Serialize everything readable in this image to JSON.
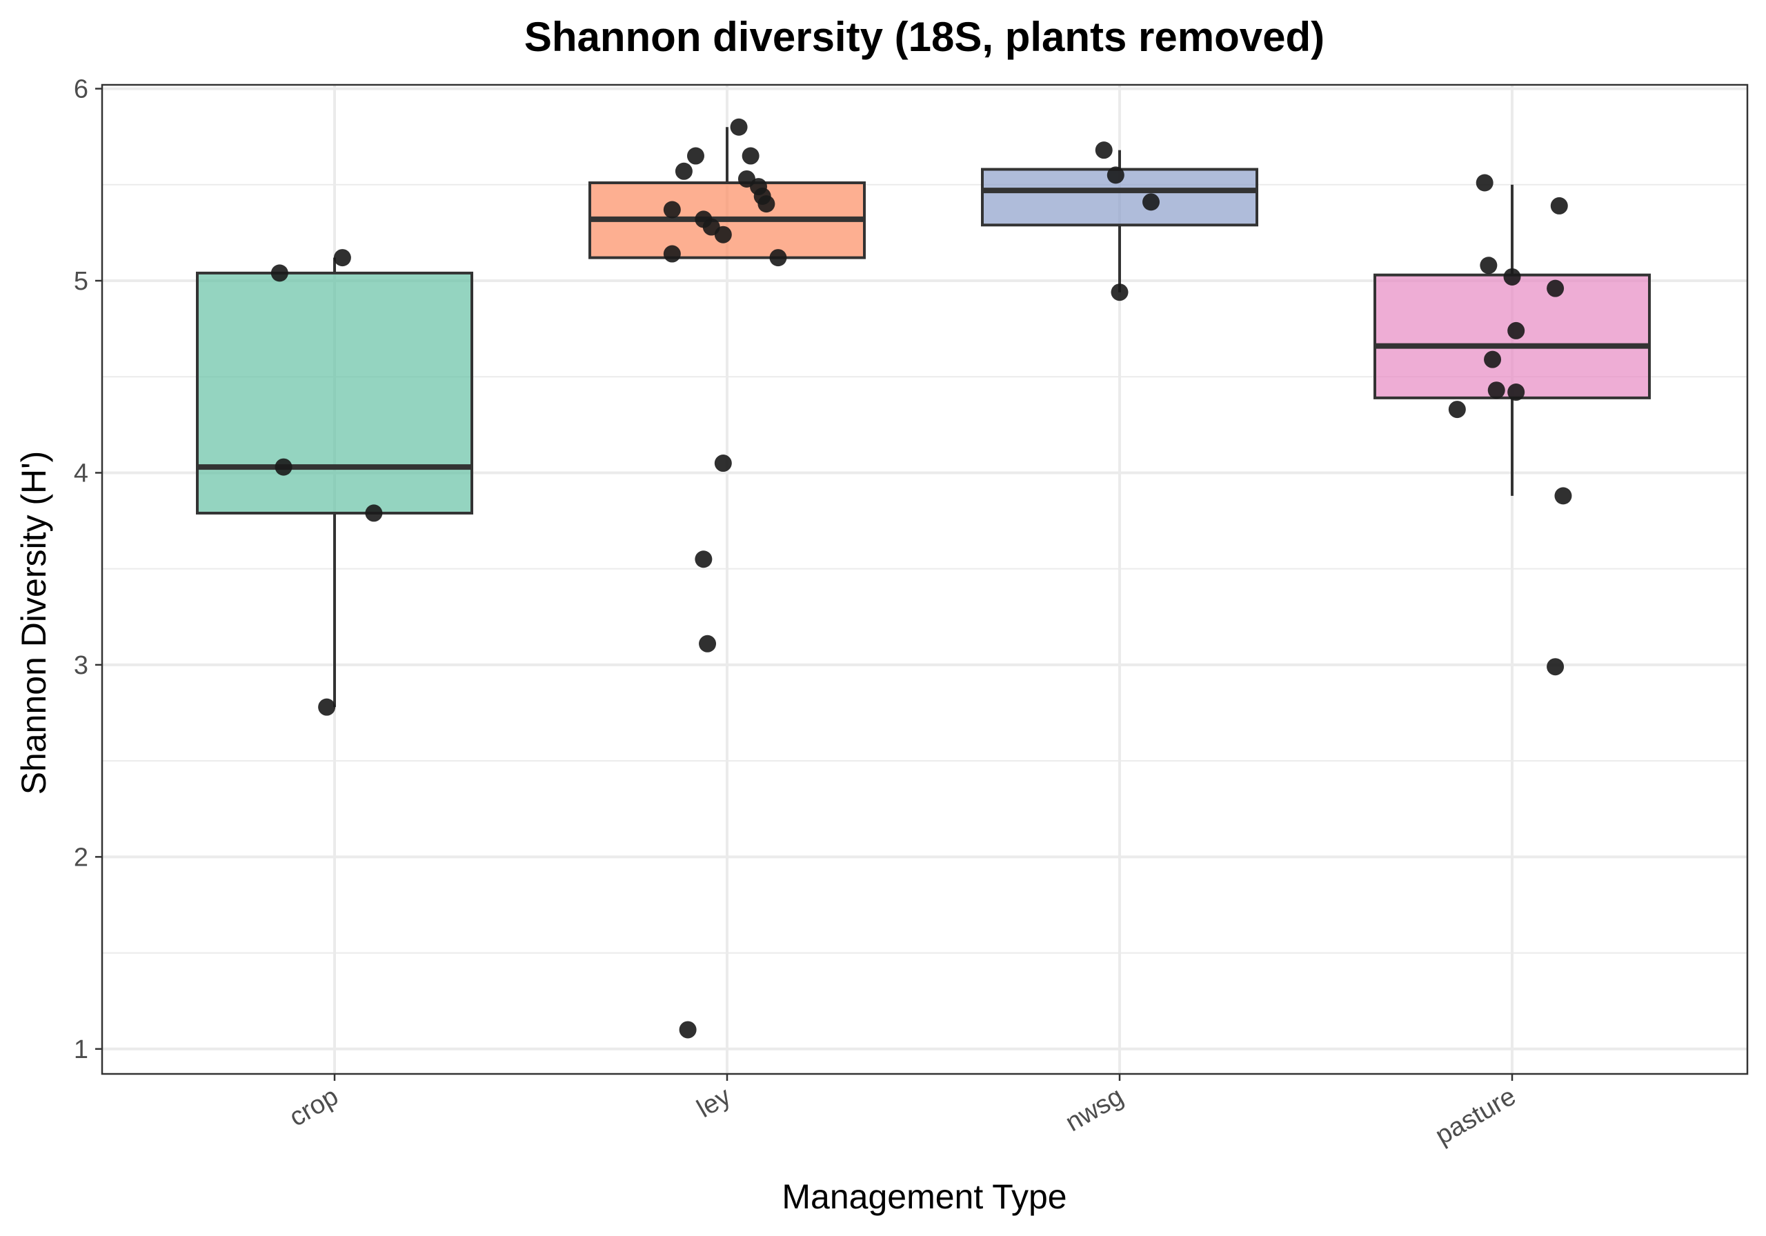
{
  "chart_data": {
    "type": "box",
    "title": "Shannon diversity (18S, plants removed)",
    "xlabel": "Management Type",
    "ylabel": "Shannon Diversity (H')",
    "ylim": [
      0.87,
      6.02
    ],
    "yticks": [
      1,
      2,
      3,
      4,
      5,
      6
    ],
    "grid": true,
    "categories": [
      "crop",
      "ley",
      "nwsg",
      "pasture"
    ],
    "colors": {
      "crop": "#66c2a5",
      "ley": "#fc8d62",
      "nwsg": "#8da0cb",
      "pasture": "#e78ac3",
      "points": "#1a1a1a",
      "box_edge": "#333333"
    },
    "boxes": [
      {
        "category": "crop",
        "whisker_low": 2.78,
        "q1": 3.79,
        "median": 4.03,
        "q3": 5.04,
        "whisker_high": 5.12
      },
      {
        "category": "ley",
        "whisker_low": 5.12,
        "q1": 5.12,
        "median": 5.32,
        "q3": 5.51,
        "whisker_high": 5.8
      },
      {
        "category": "nwsg",
        "whisker_low": 4.94,
        "q1": 5.29,
        "median": 5.47,
        "q3": 5.58,
        "whisker_high": 5.68
      },
      {
        "category": "pasture",
        "whisker_low": 3.88,
        "q1": 4.39,
        "median": 4.66,
        "q3": 5.03,
        "whisker_high": 5.5
      }
    ],
    "points": [
      {
        "category": "crop",
        "jitter": -0.14,
        "y": 5.04
      },
      {
        "category": "crop",
        "jitter": 0.02,
        "y": 5.12
      },
      {
        "category": "crop",
        "jitter": -0.13,
        "y": 4.03
      },
      {
        "category": "crop",
        "jitter": 0.1,
        "y": 3.79
      },
      {
        "category": "crop",
        "jitter": -0.02,
        "y": 2.78
      },
      {
        "category": "ley",
        "jitter": 0.03,
        "y": 5.8
      },
      {
        "category": "ley",
        "jitter": -0.08,
        "y": 5.65
      },
      {
        "category": "ley",
        "jitter": 0.06,
        "y": 5.65
      },
      {
        "category": "ley",
        "jitter": -0.11,
        "y": 5.57
      },
      {
        "category": "ley",
        "jitter": 0.05,
        "y": 5.53
      },
      {
        "category": "ley",
        "jitter": 0.08,
        "y": 5.49
      },
      {
        "category": "ley",
        "jitter": 0.09,
        "y": 5.44
      },
      {
        "category": "ley",
        "jitter": 0.1,
        "y": 5.4
      },
      {
        "category": "ley",
        "jitter": -0.14,
        "y": 5.37
      },
      {
        "category": "ley",
        "jitter": -0.06,
        "y": 5.32
      },
      {
        "category": "ley",
        "jitter": -0.04,
        "y": 5.28
      },
      {
        "category": "ley",
        "jitter": -0.01,
        "y": 5.24
      },
      {
        "category": "ley",
        "jitter": -0.14,
        "y": 5.14
      },
      {
        "category": "ley",
        "jitter": 0.13,
        "y": 5.12
      },
      {
        "category": "ley",
        "jitter": -0.01,
        "y": 4.05
      },
      {
        "category": "ley",
        "jitter": -0.06,
        "y": 3.55
      },
      {
        "category": "ley",
        "jitter": -0.05,
        "y": 3.11
      },
      {
        "category": "ley",
        "jitter": -0.1,
        "y": 1.1
      },
      {
        "category": "nwsg",
        "jitter": -0.04,
        "y": 5.68
      },
      {
        "category": "nwsg",
        "jitter": -0.01,
        "y": 5.55
      },
      {
        "category": "nwsg",
        "jitter": 0.08,
        "y": 5.41
      },
      {
        "category": "nwsg",
        "jitter": 0.0,
        "y": 4.94
      },
      {
        "category": "pasture",
        "jitter": -0.07,
        "y": 5.51
      },
      {
        "category": "pasture",
        "jitter": 0.12,
        "y": 5.39
      },
      {
        "category": "pasture",
        "jitter": -0.06,
        "y": 5.08
      },
      {
        "category": "pasture",
        "jitter": 0.0,
        "y": 5.02
      },
      {
        "category": "pasture",
        "jitter": 0.11,
        "y": 4.96
      },
      {
        "category": "pasture",
        "jitter": 0.01,
        "y": 4.74
      },
      {
        "category": "pasture",
        "jitter": -0.05,
        "y": 4.59
      },
      {
        "category": "pasture",
        "jitter": -0.04,
        "y": 4.43
      },
      {
        "category": "pasture",
        "jitter": 0.01,
        "y": 4.42
      },
      {
        "category": "pasture",
        "jitter": -0.14,
        "y": 4.33
      },
      {
        "category": "pasture",
        "jitter": 0.13,
        "y": 3.88
      },
      {
        "category": "pasture",
        "jitter": 0.11,
        "y": 2.99
      }
    ]
  }
}
